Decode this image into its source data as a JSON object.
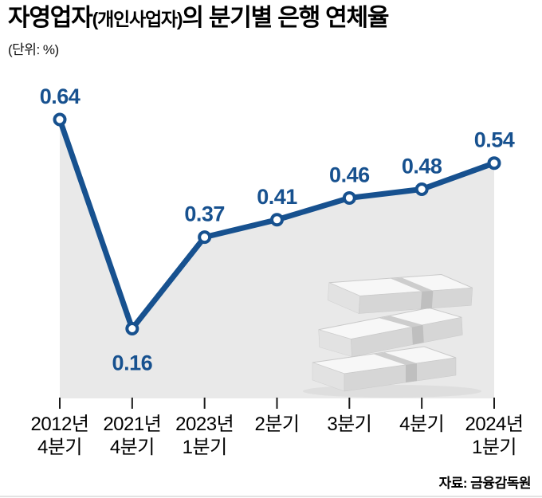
{
  "header": {
    "title_main": "자영업자",
    "title_paren": "(개인사업자)",
    "title_rest": "의 분기별 은행 연체율",
    "unit_label": "(단위: %)"
  },
  "chart_data": {
    "type": "line",
    "title": "자영업자(개인사업자)의 분기별 은행 연체율",
    "unit": "%",
    "categories": [
      "2012년 4분기",
      "2021년 4분기",
      "2023년 1분기",
      "2분기",
      "3분기",
      "4분기",
      "2024년 1분기"
    ],
    "category_lines": [
      [
        "2012년",
        "4분기"
      ],
      [
        "2021년",
        "4분기"
      ],
      [
        "2023년",
        "1분기"
      ],
      [
        "2분기"
      ],
      [
        "3분기"
      ],
      [
        "4분기"
      ],
      [
        "2024년",
        "1분기"
      ]
    ],
    "values": [
      0.64,
      0.16,
      0.37,
      0.41,
      0.46,
      0.48,
      0.54
    ],
    "ylim": [
      0,
      0.64
    ],
    "grid": false,
    "legend": false,
    "area_fill": true,
    "label_below_indices": [
      1
    ],
    "line_color": "#17518f",
    "area_color": "#e9e9e9",
    "label_color": "#17518f",
    "marker_fill": "#ffffff",
    "tick_color": "#1a1a1a"
  },
  "icons": {
    "illustration": "money-stack-icon"
  },
  "footer": {
    "source": "자료: 금융감독원"
  }
}
